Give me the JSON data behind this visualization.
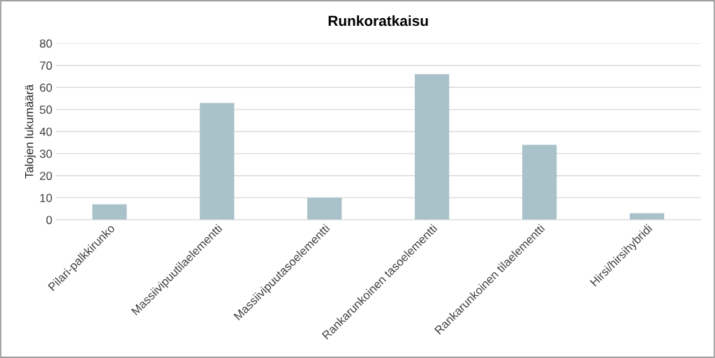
{
  "chart_data": {
    "type": "bar",
    "title": "Runkoratkaisu",
    "ylabel": "Talojen lukumäärä",
    "categories": [
      "Pilari-palkkirunko",
      "Massiivipuutilaelementti",
      "Massiivipuutasoelementti",
      "Rankarunkoinen tasoelementti",
      "Rankarunkoinen tilaelementti",
      "Hirsi/hirsihybridi"
    ],
    "values": [
      7,
      53,
      10,
      66,
      34,
      3
    ],
    "color": "#a9c1c8",
    "ylim": [
      0,
      80
    ],
    "yticks": [
      0,
      10,
      20,
      30,
      40,
      50,
      60,
      70,
      80
    ],
    "grid": "y",
    "legend": false
  }
}
